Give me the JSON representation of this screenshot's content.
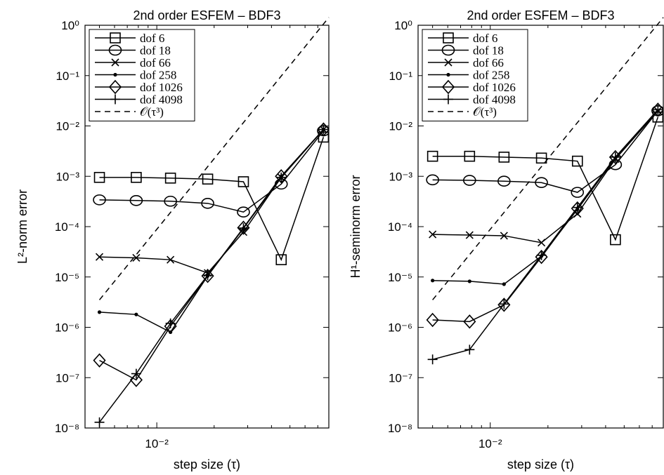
{
  "chart_data": [
    {
      "type": "line",
      "title": "2nd order ESFEM – BDF3",
      "xlabel": "step size (τ)",
      "ylabel": "L²-norm error",
      "xscale": "log",
      "yscale": "log",
      "xlim": [
        0.0042,
        0.08
      ],
      "ylim": [
        1e-08,
        1
      ],
      "y_ticks": [
        "10⁰",
        "10⁻¹",
        "10⁻²",
        "10⁻³",
        "10⁻⁴",
        "10⁻⁵",
        "10⁻⁶",
        "10⁻⁷",
        "10⁻⁸"
      ],
      "x_ticks": [
        "10⁻²"
      ],
      "x": [
        0.005,
        0.0078,
        0.0118,
        0.0185,
        0.0285,
        0.045,
        0.075
      ],
      "legend": "top-left",
      "series": [
        {
          "name": "dof 6",
          "marker": "square",
          "values": [
            0.00095,
            0.00095,
            0.00092,
            0.00088,
            0.00078,
            2.2e-05,
            0.006
          ]
        },
        {
          "name": "dof 18",
          "marker": "circle",
          "values": [
            0.00034,
            0.00033,
            0.00032,
            0.00029,
            0.000195,
            0.0007,
            0.008
          ]
        },
        {
          "name": "dof 66",
          "marker": "x",
          "values": [
            2.5e-05,
            2.4e-05,
            2.2e-05,
            1.2e-05,
            7.8e-05,
            0.00095,
            0.0085
          ]
        },
        {
          "name": "dof 258",
          "marker": "dot",
          "values": [
            2e-06,
            1.8e-06,
            8e-07,
            1.05e-05,
            9.2e-05,
            0.001,
            0.0085
          ]
        },
        {
          "name": "dof 1026",
          "marker": "diamond",
          "values": [
            2.2e-07,
            9e-08,
            1.05e-06,
            1.05e-05,
            9.5e-05,
            0.001,
            0.0085
          ]
        },
        {
          "name": "dof 4098",
          "marker": "plus",
          "values": [
            1.3e-08,
            1.2e-07,
            1.2e-06,
            1.08e-05,
            9.35e-05,
            0.00095,
            0.0085
          ]
        }
      ],
      "reference": {
        "name": "𝒪(τ³)",
        "style": "dashed",
        "x": [
          0.005,
          0.08
        ],
        "y": [
          3.5e-06,
          1.43
        ]
      }
    },
    {
      "type": "line",
      "title": "2nd order ESFEM – BDF3",
      "xlabel": "step size (τ)",
      "ylabel": "H¹-seminorm error",
      "xscale": "log",
      "yscale": "log",
      "xlim": [
        0.0042,
        0.08
      ],
      "ylim": [
        1e-08,
        1
      ],
      "y_ticks": [
        "10⁰",
        "10⁻¹",
        "10⁻²",
        "10⁻³",
        "10⁻⁴",
        "10⁻⁵",
        "10⁻⁶",
        "10⁻⁷",
        "10⁻⁸"
      ],
      "x_ticks": [
        "10⁻²"
      ],
      "x": [
        0.005,
        0.0078,
        0.0118,
        0.0185,
        0.0285,
        0.045,
        0.075
      ],
      "legend": "top-left",
      "series": [
        {
          "name": "dof 6",
          "marker": "square",
          "values": [
            0.0025,
            0.0025,
            0.0024,
            0.0023,
            0.002,
            5.5e-05,
            0.015
          ]
        },
        {
          "name": "dof 18",
          "marker": "circle",
          "values": [
            0.00085,
            0.00083,
            0.0008,
            0.00075,
            0.00048,
            0.0017,
            0.02
          ]
        },
        {
          "name": "dof 66",
          "marker": "x",
          "values": [
            7e-05,
            6.8e-05,
            6.6e-05,
            4.8e-05,
            0.00018,
            0.0022,
            0.02
          ]
        },
        {
          "name": "dof 258",
          "marker": "dot",
          "values": [
            8.5e-06,
            8.2e-06,
            7.2e-06,
            2.6e-05,
            0.00022,
            0.0023,
            0.02
          ]
        },
        {
          "name": "dof 1026",
          "marker": "diamond",
          "values": [
            1.4e-06,
            1.3e-06,
            2.8e-06,
            2.5e-05,
            0.00023,
            0.0024,
            0.021
          ]
        },
        {
          "name": "dof 4098",
          "marker": "plus",
          "values": [
            2.3e-07,
            3.6e-07,
            2.9e-06,
            2.7e-05,
            0.00024,
            0.0024,
            0.021
          ]
        }
      ],
      "reference": {
        "name": "𝒪(τ³)",
        "style": "dashed",
        "x": [
          0.005,
          0.08
        ],
        "y": [
          3.5e-06,
          1.43
        ]
      }
    }
  ]
}
